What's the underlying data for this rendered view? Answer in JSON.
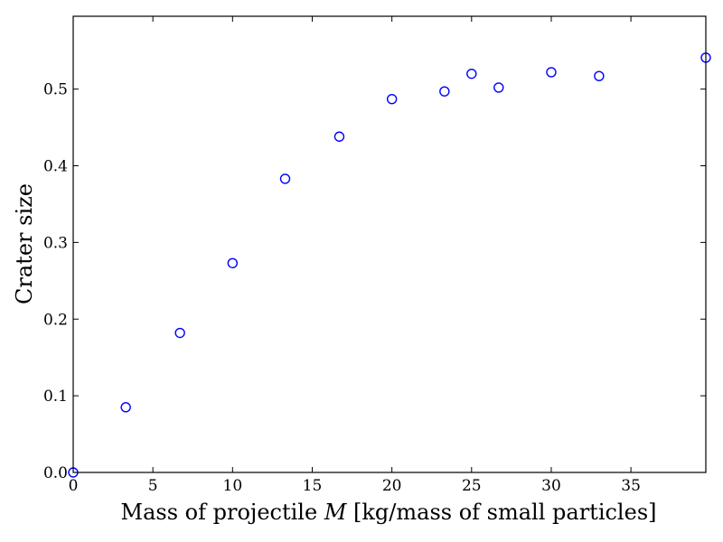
{
  "chart_data": {
    "type": "scatter",
    "xlabel_prefix": "Mass of projectile ",
    "xlabel_var": "M",
    "xlabel_suffix": " [kg/mass of small particles]",
    "ylabel": "Crater size",
    "xlim": [
      0,
      39.7
    ],
    "ylim": [
      0,
      0.595
    ],
    "xticks": [
      0,
      5,
      10,
      15,
      20,
      25,
      30,
      35
    ],
    "xtick_labels": [
      "0",
      "5",
      "10",
      "15",
      "20",
      "25",
      "30",
      "35"
    ],
    "yticks": [
      0.0,
      0.1,
      0.2,
      0.3,
      0.4,
      0.5
    ],
    "ytick_labels": [
      "0.0",
      "0.1",
      "0.2",
      "0.3",
      "0.4",
      "0.5"
    ],
    "grid": false,
    "marker": "open-circle",
    "marker_color": "#0000ff",
    "points": [
      {
        "x": 0.0,
        "y": 0.0
      },
      {
        "x": 3.3,
        "y": 0.085
      },
      {
        "x": 6.7,
        "y": 0.182
      },
      {
        "x": 10.0,
        "y": 0.273
      },
      {
        "x": 13.3,
        "y": 0.383
      },
      {
        "x": 16.7,
        "y": 0.438
      },
      {
        "x": 20.0,
        "y": 0.487
      },
      {
        "x": 23.3,
        "y": 0.497
      },
      {
        "x": 25.0,
        "y": 0.52
      },
      {
        "x": 26.7,
        "y": 0.502
      },
      {
        "x": 30.0,
        "y": 0.522
      },
      {
        "x": 33.0,
        "y": 0.517
      },
      {
        "x": 39.7,
        "y": 0.541
      }
    ]
  }
}
